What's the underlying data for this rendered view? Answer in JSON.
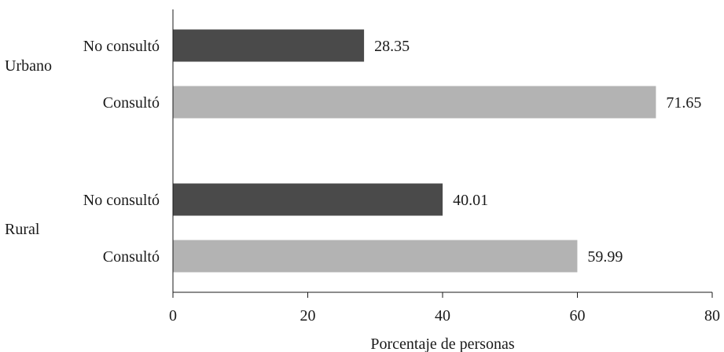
{
  "chart_data": {
    "type": "bar",
    "orientation": "horizontal",
    "xlabel": "Porcentaje de personas",
    "xlim": [
      0,
      80
    ],
    "xticks": [
      0,
      20,
      40,
      60,
      80
    ],
    "grid": false,
    "legend": "none",
    "groups": [
      {
        "name": "Urbano",
        "bars": [
          {
            "label": "No consultó",
            "value": 28.35,
            "value_label": "28.35",
            "color": "#4a4a4a"
          },
          {
            "label": "Consultó",
            "value": 71.65,
            "value_label": "71.65",
            "color": "#b3b3b3"
          }
        ]
      },
      {
        "name": "Rural",
        "bars": [
          {
            "label": "No consultó",
            "value": 40.01,
            "value_label": "40.01",
            "color": "#4a4a4a"
          },
          {
            "label": "Consultó",
            "value": 59.99,
            "value_label": "59.99",
            "color": "#b3b3b3"
          }
        ]
      }
    ]
  }
}
